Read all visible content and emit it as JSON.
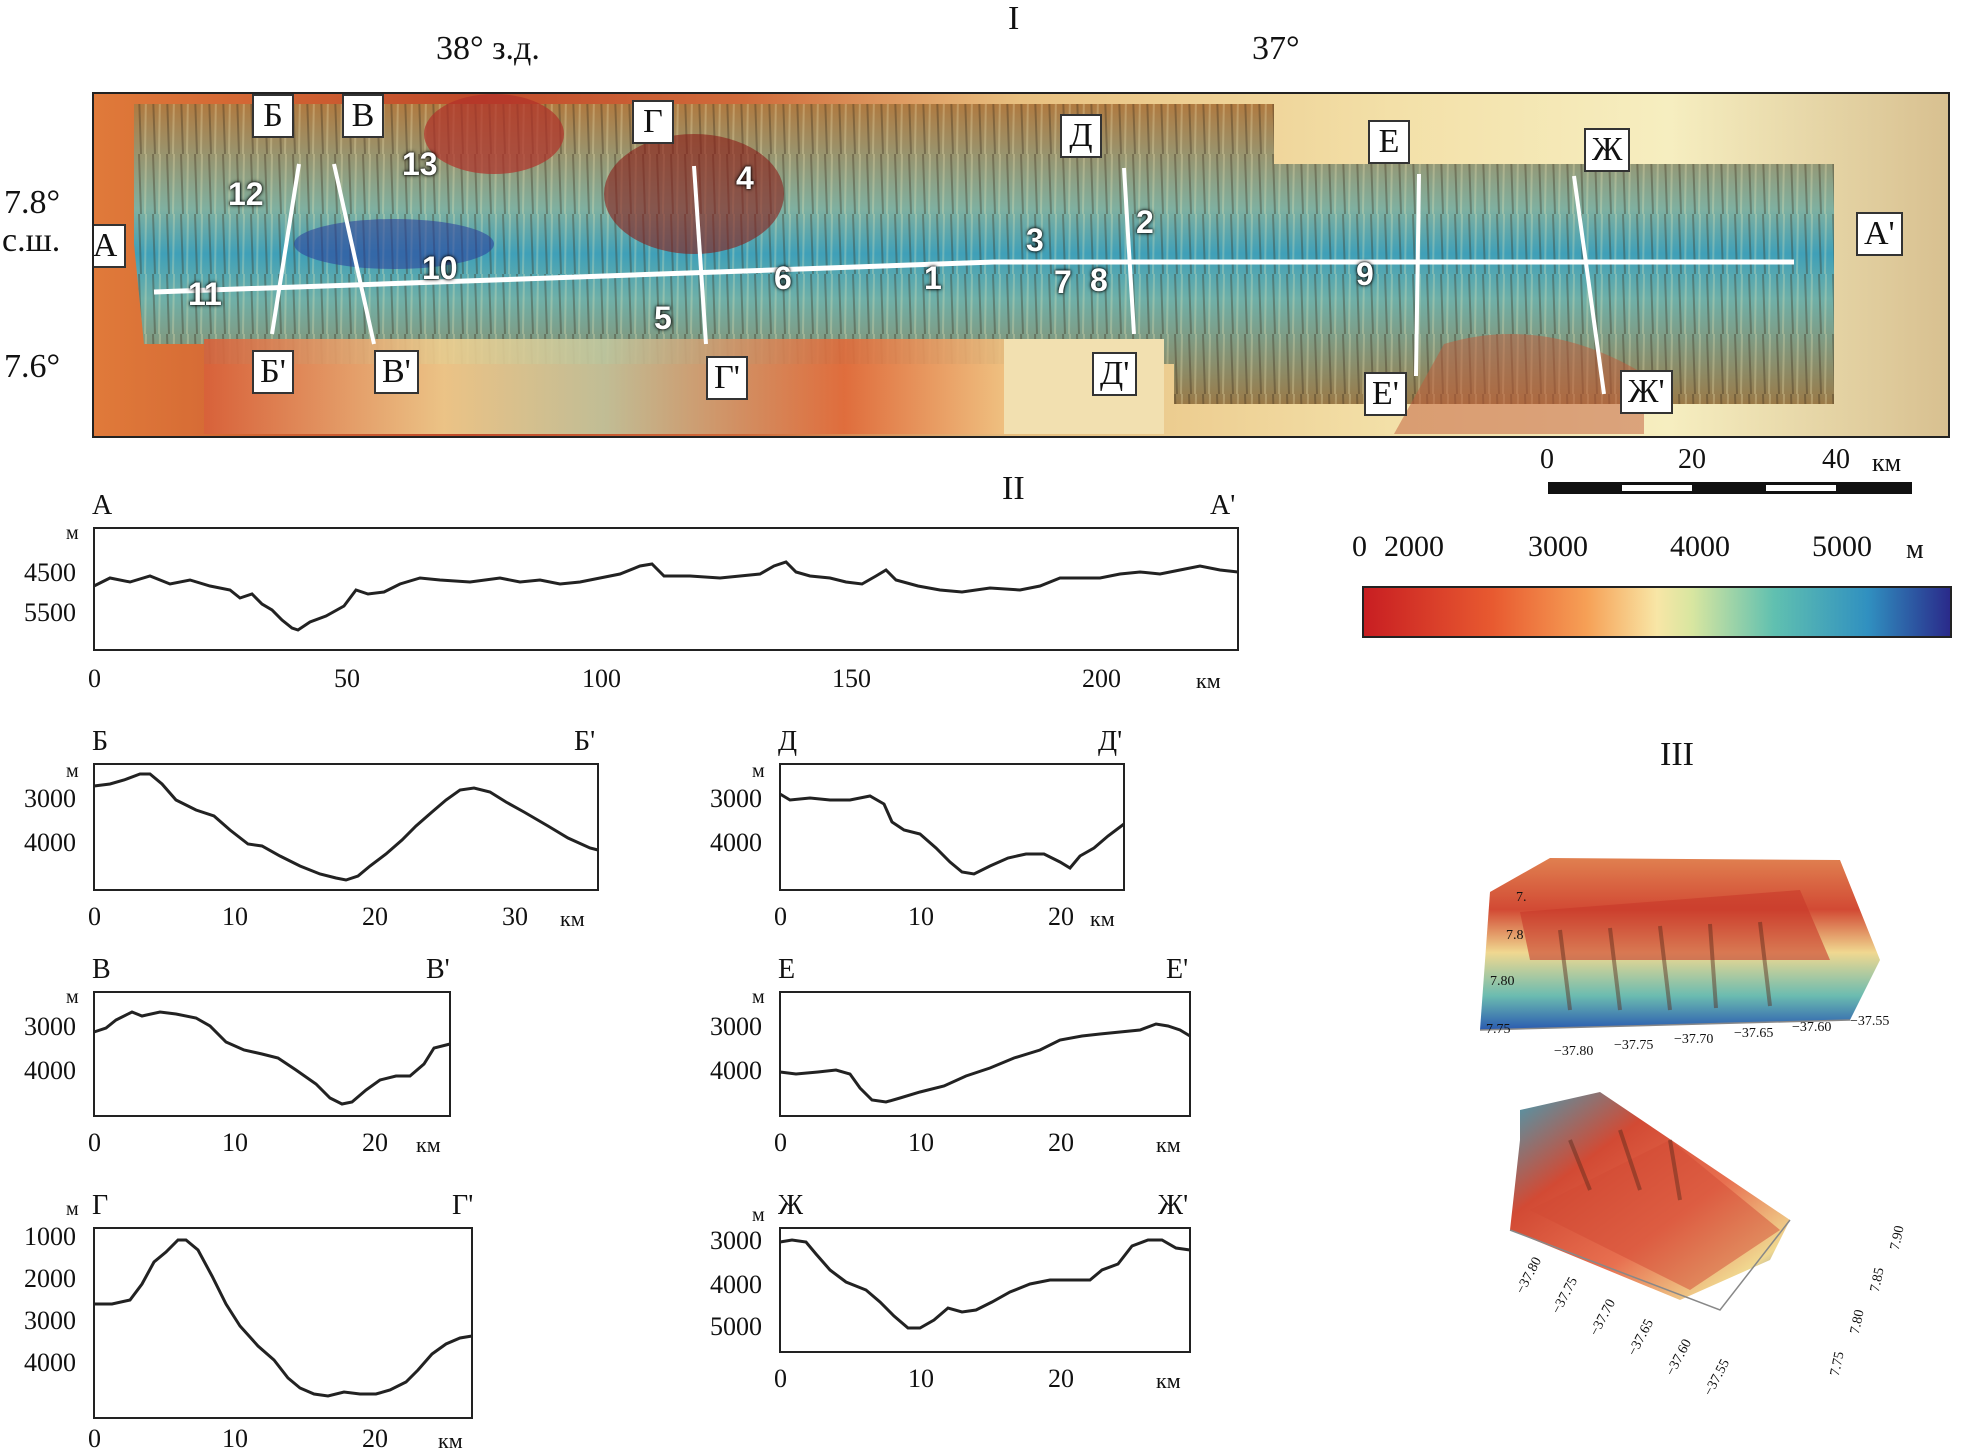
{
  "panel_labels": {
    "map": "I",
    "profiles": "II",
    "perspective": "III"
  },
  "map": {
    "lon_labels": [
      "38° з.д.",
      "37°"
    ],
    "lat_labels": [
      "7.8°",
      "с.ш.",
      "7.6°"
    ],
    "profile_labels": [
      "А",
      "А'",
      "Б",
      "Б'",
      "В",
      "В'",
      "Г",
      "Г'",
      "Д",
      "Д'",
      "Е",
      "Е'",
      "Ж",
      "Ж'"
    ],
    "feature_numbers": [
      "1",
      "2",
      "3",
      "4",
      "5",
      "6",
      "7",
      "8",
      "9",
      "10",
      "11",
      "12",
      "13"
    ],
    "scale_bar": {
      "labels": [
        "0",
        "20",
        "40"
      ],
      "unit": "км"
    }
  },
  "colorbar": {
    "labels": [
      "0",
      "2000",
      "3000",
      "4000",
      "5000"
    ],
    "unit": "м"
  },
  "profiles": [
    {
      "id": "A",
      "start": "А",
      "end": "А'",
      "yunit": "м",
      "xunit": "км",
      "yticks": [
        "4500",
        "5500"
      ],
      "xticks": [
        "0",
        "50",
        "100",
        "150",
        "200"
      ]
    },
    {
      "id": "B",
      "start": "Б",
      "end": "Б'",
      "yunit": "м",
      "xunit": "км",
      "yticks": [
        "3000",
        "4000"
      ],
      "xticks": [
        "0",
        "10",
        "20",
        "30"
      ]
    },
    {
      "id": "V",
      "start": "В",
      "end": "В'",
      "yunit": "м",
      "xunit": "км",
      "yticks": [
        "3000",
        "4000"
      ],
      "xticks": [
        "0",
        "10",
        "20"
      ]
    },
    {
      "id": "G",
      "start": "Г",
      "end": "Г'",
      "yunit": "м",
      "xunit": "км",
      "yticks": [
        "1000",
        "2000",
        "3000",
        "4000"
      ],
      "xticks": [
        "0",
        "10",
        "20"
      ]
    },
    {
      "id": "D",
      "start": "Д",
      "end": "Д'",
      "yunit": "м",
      "xunit": "км",
      "yticks": [
        "3000",
        "4000"
      ],
      "xticks": [
        "0",
        "10",
        "20"
      ]
    },
    {
      "id": "E",
      "start": "Е",
      "end": "Е'",
      "yunit": "м",
      "xunit": "км",
      "yticks": [
        "3000",
        "4000"
      ],
      "xticks": [
        "0",
        "10",
        "20"
      ]
    },
    {
      "id": "Zh",
      "start": "Ж",
      "end": "Ж'",
      "yunit": "м",
      "xunit": "км",
      "yticks": [
        "3000",
        "4000",
        "5000"
      ],
      "xticks": [
        "0",
        "10",
        "20"
      ]
    }
  ],
  "perspective": {
    "top": {
      "lat_ticks": [
        "7.",
        "7.8",
        "7.80",
        "7.75"
      ],
      "lon_ticks": [
        "−37.80",
        "−37.75",
        "−37.70",
        "−37.65",
        "−37.60",
        "−37.55"
      ]
    },
    "bottom": {
      "lon_ticks": [
        "−37.80",
        "−37.75",
        "−37.70",
        "−37.65",
        "−37.60",
        "−37.55"
      ],
      "lat_ticks": [
        "7.90",
        "7.85",
        "7.80",
        "7.75"
      ]
    }
  },
  "colors": {
    "shallow": "#d03a2a",
    "mid": "#f5efb0",
    "deep": "#2a2f8a",
    "line": "#222222"
  }
}
